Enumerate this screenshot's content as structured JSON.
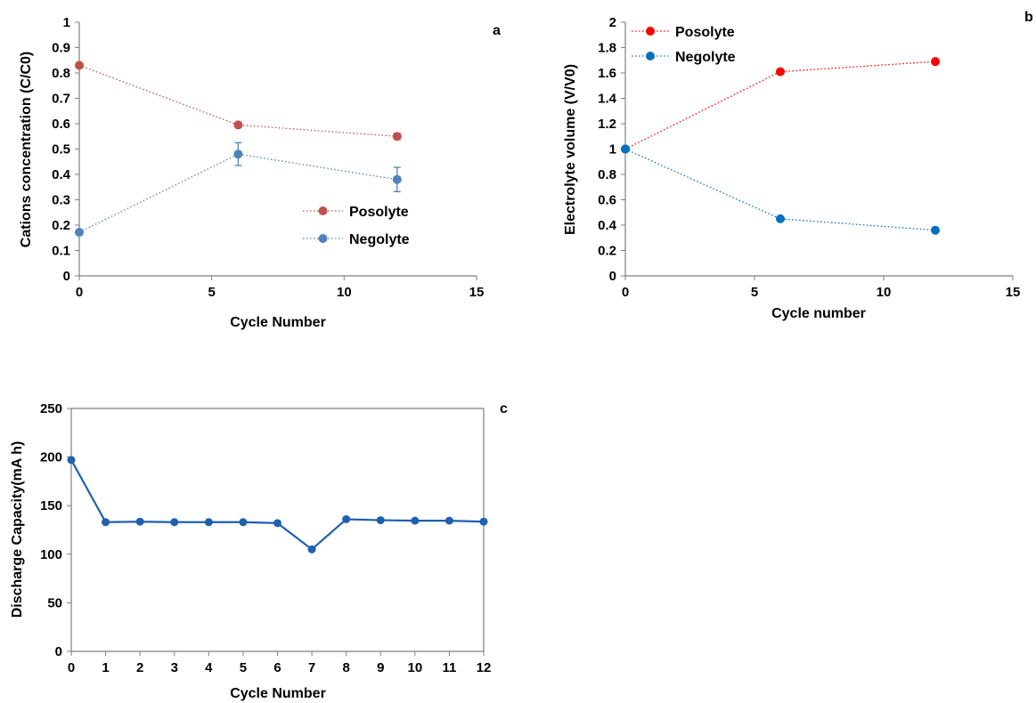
{
  "chart_data": [
    {
      "type": "scatter",
      "panel_label": "a",
      "xlabel": "Cycle Number",
      "ylabel": "Cations concentration (C/C0)",
      "xlim": [
        0,
        15
      ],
      "ylim": [
        0,
        1
      ],
      "xticks": [
        0,
        5,
        10,
        15
      ],
      "yticks": [
        0,
        0.1,
        0.2,
        0.3,
        0.4,
        0.5,
        0.6,
        0.7,
        0.8,
        0.9,
        1
      ],
      "legend_position": "center-right",
      "series": [
        {
          "name": "Posolyte",
          "color": "#c0504d",
          "line": "dotted",
          "x": [
            0,
            6,
            12
          ],
          "y": [
            0.83,
            0.595,
            0.55
          ],
          "err": [
            0,
            0,
            0.012
          ]
        },
        {
          "name": "Negolyte",
          "color": "#4f81bd",
          "line": "dotted",
          "x": [
            0,
            6,
            12
          ],
          "y": [
            0.172,
            0.48,
            0.38
          ],
          "err": [
            0,
            0.045,
            0.048
          ]
        }
      ]
    },
    {
      "type": "scatter",
      "panel_label": "b",
      "xlabel": "Cycle number",
      "ylabel": "Electrolyte volume (V/V0)",
      "xlim": [
        0,
        15
      ],
      "ylim": [
        0,
        2
      ],
      "xticks": [
        0,
        5,
        10,
        15
      ],
      "yticks": [
        0,
        0.2,
        0.4,
        0.6,
        0.8,
        1,
        1.2,
        1.4,
        1.6,
        1.8,
        2
      ],
      "legend_position": "top-left",
      "series": [
        {
          "name": "Posolyte",
          "color": "#ff0000",
          "line": "dotted",
          "x": [
            0,
            6,
            12
          ],
          "y": [
            1.0,
            1.61,
            1.69
          ]
        },
        {
          "name": "Negolyte",
          "color": "#0070c0",
          "line": "dotted",
          "x": [
            0,
            6,
            12
          ],
          "y": [
            1.0,
            0.45,
            0.36
          ]
        }
      ]
    },
    {
      "type": "line",
      "panel_label": "c",
      "xlabel": "Cycle Number",
      "ylabel": "Discharge Capacity(mA h)",
      "xlim": [
        0,
        12
      ],
      "ylim": [
        0,
        250
      ],
      "xticks": [
        0,
        1,
        2,
        3,
        4,
        5,
        6,
        7,
        8,
        9,
        10,
        11,
        12
      ],
      "yticks": [
        0,
        50,
        100,
        150,
        200,
        250
      ],
      "series": [
        {
          "color": "#1f5fb0",
          "line": "solid",
          "x": [
            0,
            1,
            2,
            3,
            4,
            5,
            6,
            7,
            8,
            9,
            10,
            11,
            12
          ],
          "y": [
            197,
            133,
            133.5,
            133,
            133,
            133,
            132,
            105,
            136,
            135,
            134.5,
            134.5,
            133.5
          ]
        }
      ]
    }
  ]
}
